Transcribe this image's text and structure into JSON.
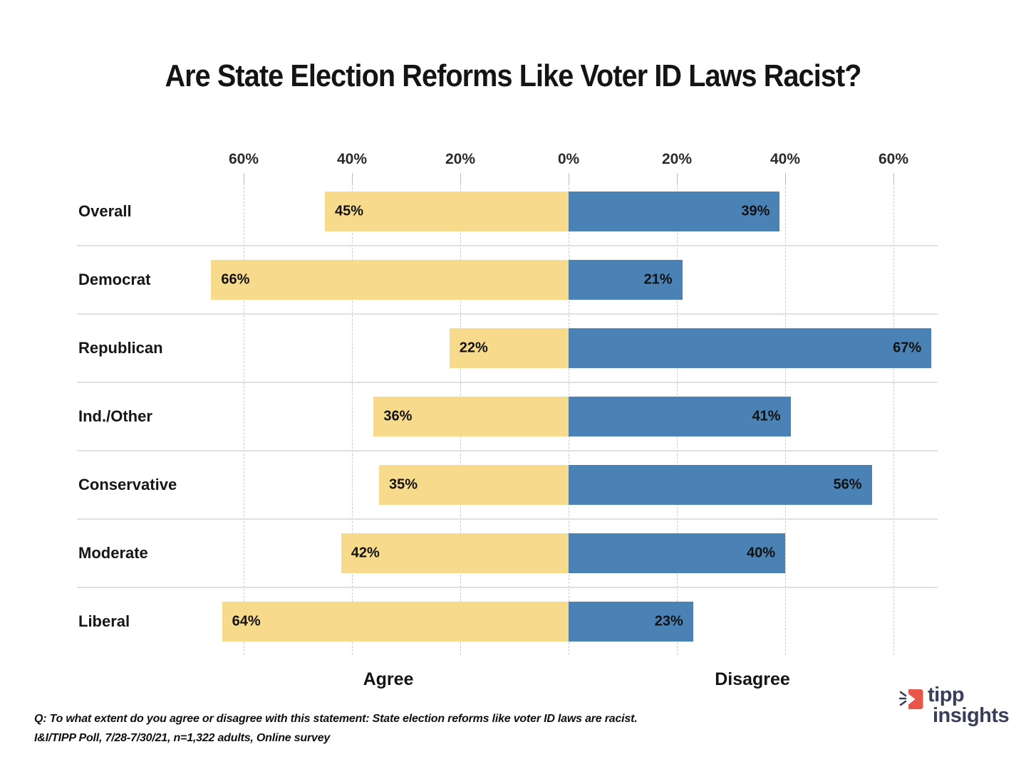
{
  "title": "Are State Election Reforms Like Voter ID Laws Racist?",
  "chart_data": {
    "type": "bar",
    "orientation": "horizontal-diverging",
    "title": "Are State Election Reforms Like Voter ID Laws Racist?",
    "categories": [
      "Overall",
      "Democrat",
      "Republican",
      "Ind./Other",
      "Conservative",
      "Moderate",
      "Liberal"
    ],
    "series": [
      {
        "name": "Agree",
        "side": "left",
        "color": "#F8DA8C",
        "values": [
          45,
          66,
          22,
          36,
          35,
          42,
          64
        ]
      },
      {
        "name": "Disagree",
        "side": "right",
        "color": "#4A82B5",
        "values": [
          39,
          21,
          67,
          41,
          56,
          40,
          23
        ]
      }
    ],
    "value_suffix": "%",
    "axis_ticks": [
      {
        "label": "60%",
        "value": -60
      },
      {
        "label": "40%",
        "value": -40
      },
      {
        "label": "20%",
        "value": -20
      },
      {
        "label": "0%",
        "value": 0
      },
      {
        "label": "20%",
        "value": 20
      },
      {
        "label": "40%",
        "value": 40
      },
      {
        "label": "60%",
        "value": 60
      }
    ],
    "xlim": [
      -68,
      68
    ],
    "grid": "vertical-dashed",
    "legend_position": "bottom"
  },
  "legend": {
    "agree_label": "Agree",
    "disagree_label": "Disagree"
  },
  "footnote": {
    "line1": "Q: To what extent do you agree or disagree with this statement: State election reforms like voter ID laws are racist.",
    "line2": "I&I/TIPP Poll, 7/28-7/30/21, n=1,322 adults, Online survey"
  },
  "logo": {
    "word1": "tipp",
    "word2": "insights",
    "icon": "tipp-insights-mark",
    "accent_color": "#E8564B",
    "text_color": "#3A3E5B"
  },
  "colors": {
    "agree": "#F8DA8C",
    "disagree": "#4A82B5",
    "gridline": "#c9c9c9",
    "separator": "#e0e0e0",
    "text": "#141414"
  }
}
